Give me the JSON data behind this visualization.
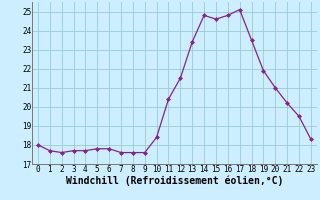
{
  "x": [
    0,
    1,
    2,
    3,
    4,
    5,
    6,
    7,
    8,
    9,
    10,
    11,
    12,
    13,
    14,
    15,
    16,
    17,
    18,
    19,
    20,
    21,
    22,
    23
  ],
  "y": [
    18.0,
    17.7,
    17.6,
    17.7,
    17.7,
    17.8,
    17.8,
    17.6,
    17.6,
    17.6,
    18.4,
    20.4,
    21.5,
    23.4,
    24.8,
    24.6,
    24.8,
    25.1,
    23.5,
    21.9,
    21.0,
    20.2,
    19.5,
    18.3
  ],
  "xlabel": "Windchill (Refroidissement éolien,°C)",
  "ylim": [
    17,
    25.5
  ],
  "yticks": [
    17,
    18,
    19,
    20,
    21,
    22,
    23,
    24,
    25
  ],
  "xticks": [
    0,
    1,
    2,
    3,
    4,
    5,
    6,
    7,
    8,
    9,
    10,
    11,
    12,
    13,
    14,
    15,
    16,
    17,
    18,
    19,
    20,
    21,
    22,
    23
  ],
  "line_color": "#882288",
  "marker": "D",
  "marker_size": 2.0,
  "bg_color": "#cceeff",
  "grid_color": "#99cccc",
  "tick_label_fontsize": 5.5,
  "xlabel_fontsize": 7.0
}
